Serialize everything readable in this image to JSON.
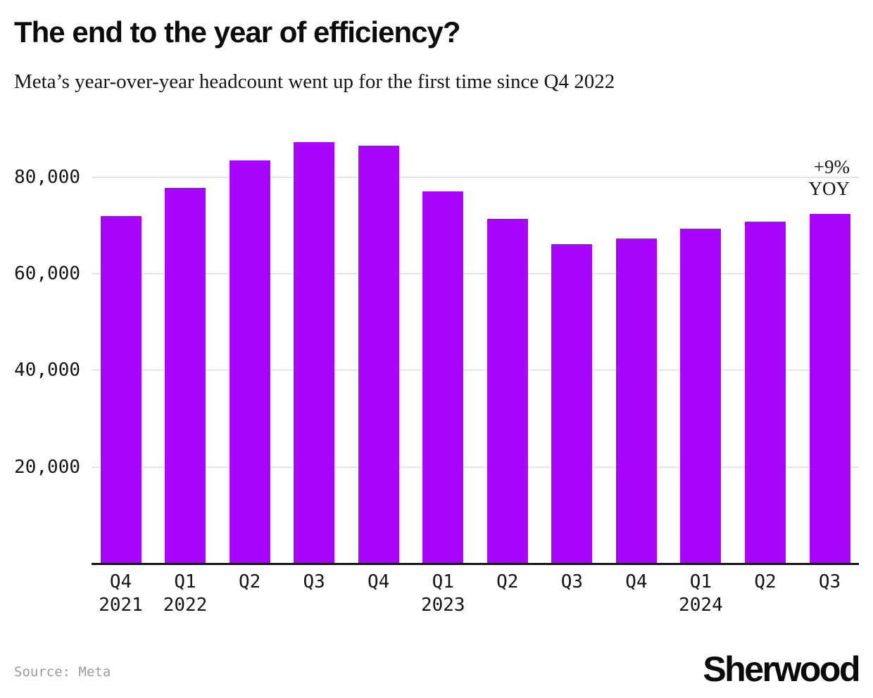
{
  "header": {
    "title": "The end to the year of efficiency?",
    "subtitle": "Meta’s year-over-year headcount went up for the first time since Q4 2022"
  },
  "chart_data": {
    "type": "bar",
    "title": "The end to the year of efficiency?",
    "subtitle": "Meta’s year-over-year headcount went up for the first time since Q4 2022",
    "categories": [
      {
        "quarter": "Q4",
        "year": "2021"
      },
      {
        "quarter": "Q1",
        "year": "2022"
      },
      {
        "quarter": "Q2",
        "year": ""
      },
      {
        "quarter": "Q3",
        "year": ""
      },
      {
        "quarter": "Q4",
        "year": ""
      },
      {
        "quarter": "Q1",
        "year": "2023"
      },
      {
        "quarter": "Q2",
        "year": ""
      },
      {
        "quarter": "Q3",
        "year": ""
      },
      {
        "quarter": "Q4",
        "year": ""
      },
      {
        "quarter": "Q1",
        "year": "2024"
      },
      {
        "quarter": "Q2",
        "year": ""
      },
      {
        "quarter": "Q3",
        "year": ""
      }
    ],
    "values": [
      71970,
      77805,
      83553,
      87314,
      86482,
      77114,
      71469,
      66185,
      67317,
      69329,
      70799,
      72404
    ],
    "y_ticks": [
      {
        "value": 20000,
        "label": "20,000"
      },
      {
        "value": 40000,
        "label": "40,000"
      },
      {
        "value": 60000,
        "label": "60,000"
      },
      {
        "value": 80000,
        "label": "80,000"
      }
    ],
    "ylim": [
      0,
      89600
    ],
    "grid": true,
    "legend": false,
    "annotation": {
      "line1": "+9%",
      "line2": "YOY"
    }
  },
  "colors": {
    "bar": "#AA05FB",
    "grid": "#E4E4E4",
    "axis": "#141414",
    "source_text": "#9B9B9B"
  },
  "footer": {
    "source": "Source: Meta",
    "brand": "Sherwood"
  }
}
